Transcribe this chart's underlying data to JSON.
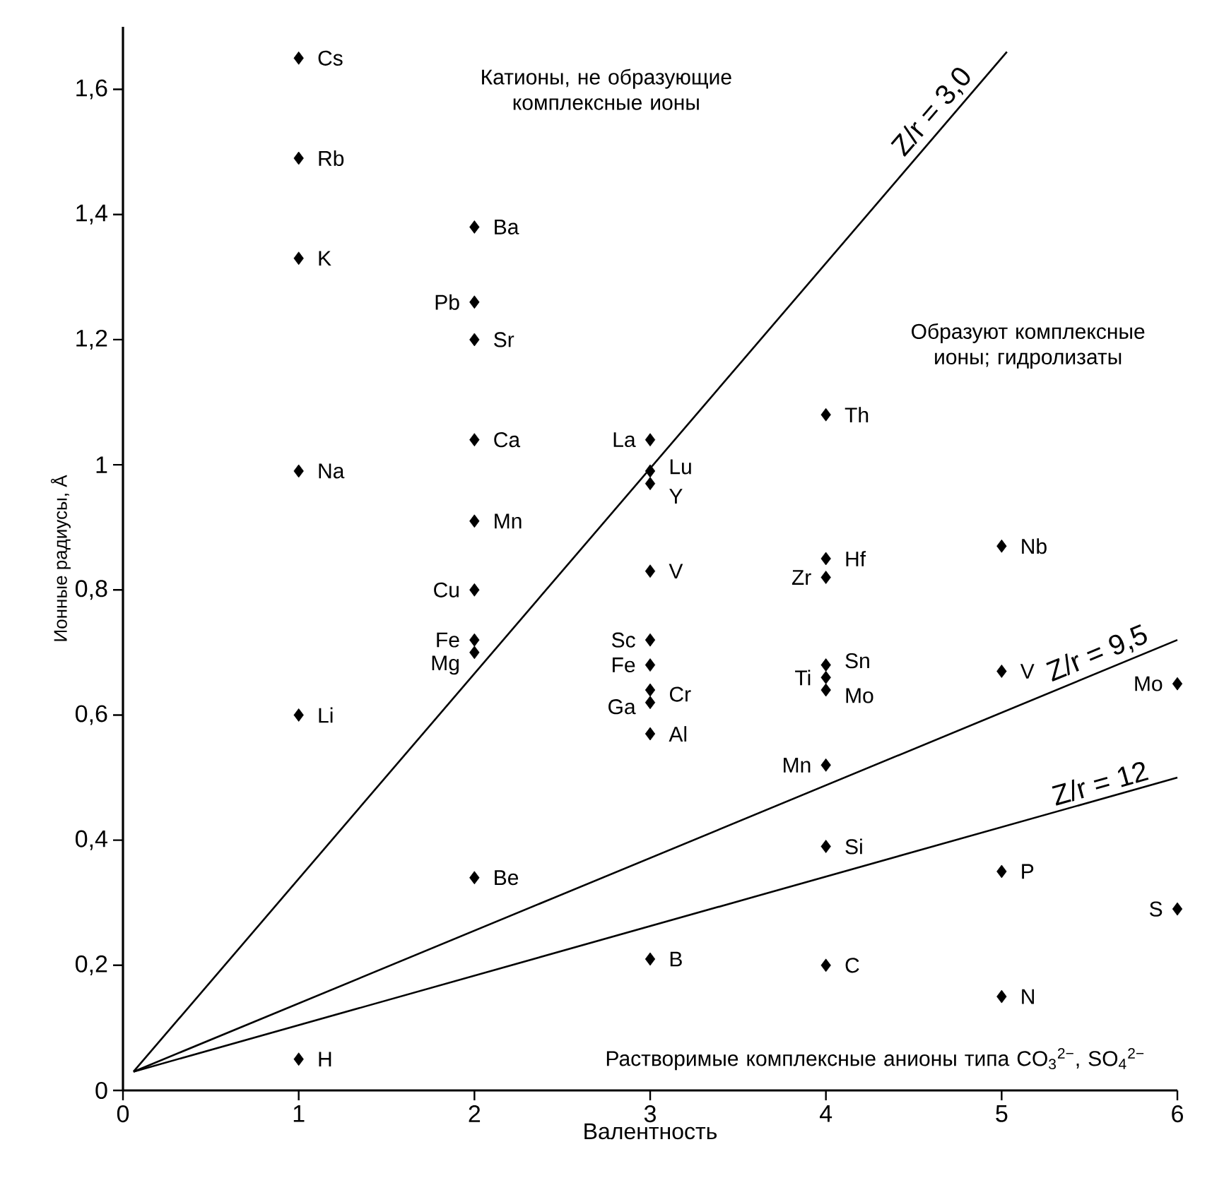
{
  "chart_data": {
    "type": "scatter",
    "xlabel": "Валентность",
    "ylabel": "Ионные радиусы, Å",
    "xlim": [
      0,
      6
    ],
    "ylim": [
      0,
      1.7
    ],
    "xticks": [
      0,
      1,
      2,
      3,
      4,
      5,
      6
    ],
    "yticks": [
      {
        "value": 0,
        "label": "0"
      },
      {
        "value": 0.2,
        "label": "0,2"
      },
      {
        "value": 0.4,
        "label": "0,4"
      },
      {
        "value": 0.6,
        "label": "0,6"
      },
      {
        "value": 0.8,
        "label": "0,8"
      },
      {
        "value": 1,
        "label": "1"
      },
      {
        "value": 1.2,
        "label": "1,2"
      },
      {
        "value": 1.4,
        "label": "1,4"
      },
      {
        "value": 1.6,
        "label": "1,6"
      }
    ],
    "grid": false,
    "marker": "diamond",
    "series": [
      {
        "color": "#000000",
        "x": [
          1,
          1,
          1,
          1,
          1,
          1,
          2,
          2,
          2,
          2,
          2,
          2,
          2,
          2,
          2,
          3,
          3,
          3,
          3,
          3,
          3,
          3,
          3,
          3,
          3,
          4,
          4,
          4,
          4,
          4,
          4,
          4,
          4,
          4,
          5,
          5,
          5,
          5,
          6,
          6
        ],
        "values": [
          1.65,
          1.49,
          1.33,
          0.99,
          0.6,
          0.05,
          1.38,
          1.26,
          1.2,
          1.04,
          0.91,
          0.8,
          0.72,
          0.7,
          0.34,
          1.04,
          0.99,
          0.97,
          0.83,
          0.72,
          0.68,
          0.64,
          0.62,
          0.57,
          0.21,
          1.08,
          0.85,
          0.82,
          0.68,
          0.66,
          0.64,
          0.52,
          0.39,
          0.2,
          0.87,
          0.67,
          0.35,
          0.15,
          0.65,
          0.29
        ]
      },
      {
        "type": "line",
        "name": "Z/r = 3,0",
        "color": "#000000",
        "line_style": "solid",
        "marker": "none",
        "x": [
          0.06,
          5.03
        ],
        "values": [
          0.03,
          1.66
        ]
      },
      {
        "type": "line",
        "name": "Z/r = 9,5",
        "color": "#000000",
        "line_style": "solid",
        "marker": "none",
        "x": [
          0.06,
          6
        ],
        "values": [
          0.03,
          0.72
        ]
      },
      {
        "type": "line",
        "name": "Z/r = 12",
        "color": "#000000",
        "line_style": "solid",
        "marker": "none",
        "x": [
          0.06,
          6
        ],
        "values": [
          0.03,
          0.5
        ]
      }
    ],
    "annotations": [
      "Катионы, не образующие комплексные ионы",
      "Образуют комплексные ионы; гидролизаты",
      "Растворимые комплексные анионы типа CO$_{3}$$^{2−}$, SO$_{4}$$^{2−}$",
      {
        "text": "Cs",
        "x": 1,
        "y": 1.65
      },
      {
        "text": "Rb",
        "x": 1,
        "y": 1.49
      },
      {
        "text": "K",
        "x": 1,
        "y": 1.33
      },
      {
        "text": "Na",
        "x": 1,
        "y": 0.99
      },
      {
        "text": "Li",
        "x": 1,
        "y": 0.6
      },
      {
        "text": "H",
        "x": 1,
        "y": 0.05
      },
      {
        "text": "Ba",
        "x": 2,
        "y": 1.38
      },
      {
        "text": "Pb",
        "x": 2,
        "y": 1.26
      },
      {
        "text": "Sr",
        "x": 2,
        "y": 1.2
      },
      {
        "text": "Ca",
        "x": 2,
        "y": 1.04
      },
      {
        "text": "Mn",
        "x": 2,
        "y": 0.91
      },
      {
        "text": "Cu",
        "x": 2,
        "y": 0.8
      },
      {
        "text": "Fe",
        "x": 2,
        "y": 0.72
      },
      {
        "text": "Mg",
        "x": 2,
        "y": 0.7
      },
      {
        "text": "Be",
        "x": 2,
        "y": 0.34
      },
      {
        "text": "La",
        "x": 3,
        "y": 1.04
      },
      {
        "text": "Lu",
        "x": 3,
        "y": 0.99
      },
      {
        "text": "Y",
        "x": 3,
        "y": 0.97
      },
      {
        "text": "V",
        "x": 3,
        "y": 0.83
      },
      {
        "text": "Sc",
        "x": 3,
        "y": 0.72
      },
      {
        "text": "Fe",
        "x": 3,
        "y": 0.68
      },
      {
        "text": "Cr",
        "x": 3,
        "y": 0.64
      },
      {
        "text": "Ga",
        "x": 3,
        "y": 0.62
      },
      {
        "text": "Al",
        "x": 3,
        "y": 0.57
      },
      {
        "text": "B",
        "x": 3,
        "y": 0.21
      },
      {
        "text": "Th",
        "x": 4,
        "y": 1.08
      },
      {
        "text": "Hf",
        "x": 4,
        "y": 0.85
      },
      {
        "text": "Zr",
        "x": 4,
        "y": 0.82
      },
      {
        "text": "Sn",
        "x": 4,
        "y": 0.68
      },
      {
        "text": "Ti",
        "x": 4,
        "y": 0.66
      },
      {
        "text": "Mo",
        "x": 4,
        "y": 0.64
      },
      {
        "text": "Mn",
        "x": 4,
        "y": 0.52
      },
      {
        "text": "Si",
        "x": 4,
        "y": 0.39
      },
      {
        "text": "C",
        "x": 4,
        "y": 0.2
      },
      {
        "text": "Nb",
        "x": 5,
        "y": 0.87
      },
      {
        "text": "V",
        "x": 5,
        "y": 0.67
      },
      {
        "text": "P",
        "x": 5,
        "y": 0.35
      },
      {
        "text": "N",
        "x": 5,
        "y": 0.15
      },
      {
        "text": "Mo",
        "x": 6,
        "y": 0.65
      },
      {
        "text": "S",
        "x": 6,
        "y": 0.29
      }
    ]
  }
}
